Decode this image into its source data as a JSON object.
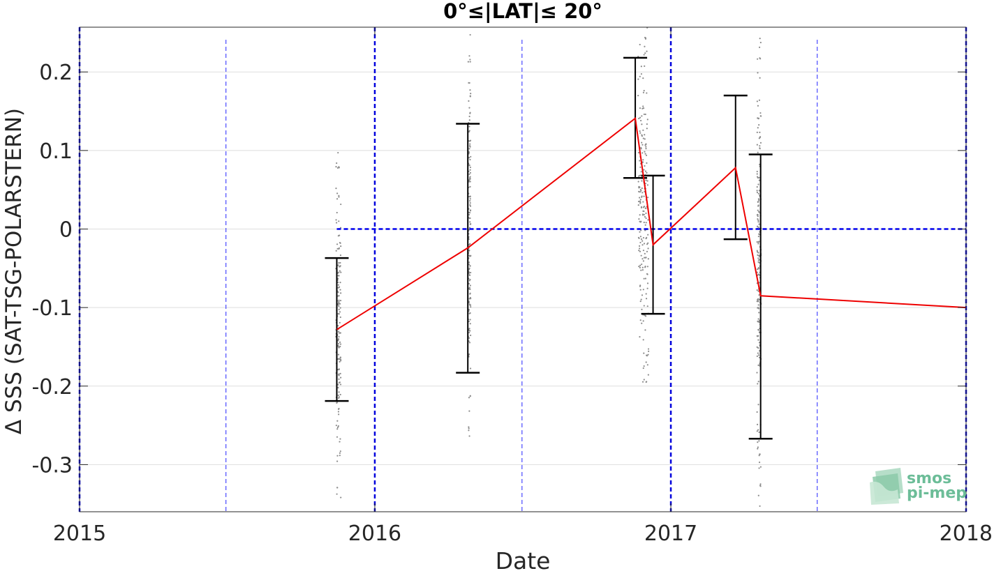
{
  "chart_data": {
    "type": "scatter",
    "title": "0°≤|LAT|≤ 20°",
    "xlabel": "Date",
    "ylabel": "Δ SSS (SAT-TSG-POLARSTERN)",
    "x_axis_type": "date",
    "xlim": [
      "2015-01-01",
      "2018-01-01"
    ],
    "ylim": [
      -0.36,
      0.257
    ],
    "x_ticks": [
      "2015",
      "2016",
      "2017",
      "2018"
    ],
    "y_ticks": [
      0.2,
      0.1,
      0,
      -0.1,
      -0.2,
      -0.3
    ],
    "y_tick_labels": [
      "0.2",
      "0.1",
      "0",
      "-0.1",
      "-0.2",
      "-0.3"
    ],
    "grid": "horizontal",
    "year_boundary_lines": [
      "2015-01-01",
      "2016-01-01",
      "2017-01-01",
      "2018-01-01"
    ],
    "half_year_lines": [
      "2015-07-01",
      "2016-07-01",
      "2017-07-01"
    ],
    "zero_reference_line": {
      "value": 0,
      "from": "2015-11-15",
      "to": "2018-01-01",
      "color": "#0000ee"
    },
    "mean_series": {
      "color": "#ee0000",
      "points": [
        {
          "date": "2015-11-15",
          "mean": -0.128,
          "low": -0.219,
          "high": -0.037
        },
        {
          "date": "2016-04-25",
          "mean": -0.024,
          "low": -0.183,
          "high": 0.134
        },
        {
          "date": "2016-11-18",
          "mean": 0.141,
          "low": 0.065,
          "high": 0.218
        },
        {
          "date": "2016-12-10",
          "mean": -0.02,
          "low": -0.108,
          "high": 0.068
        },
        {
          "date": "2017-03-22",
          "mean": 0.078,
          "low": -0.013,
          "high": 0.17
        },
        {
          "date": "2017-04-22",
          "mean": -0.085,
          "low": -0.267,
          "high": 0.095
        },
        {
          "date": "2018-01-01",
          "mean": -0.1
        }
      ]
    },
    "scatter_clusters": [
      {
        "date": "2015-11-17",
        "days_spread": 6,
        "low": -0.345,
        "high": 0.1,
        "center": -0.12,
        "count": 170
      },
      {
        "date": "2016-04-27",
        "days_spread": 3,
        "low": -0.27,
        "high": 0.25,
        "center": 0.0,
        "count": 170
      },
      {
        "date": "2016-11-28",
        "days_spread": 12,
        "low": -0.2,
        "high": 0.257,
        "center": 0.02,
        "count": 230
      },
      {
        "date": "2017-04-20",
        "days_spread": 5,
        "low": -0.355,
        "high": 0.25,
        "center": -0.05,
        "count": 200
      }
    ],
    "scatter_color": "#8c8c8c",
    "logo": {
      "line1": "smos",
      "line2": "pi-mep",
      "color": "#66b894"
    }
  }
}
